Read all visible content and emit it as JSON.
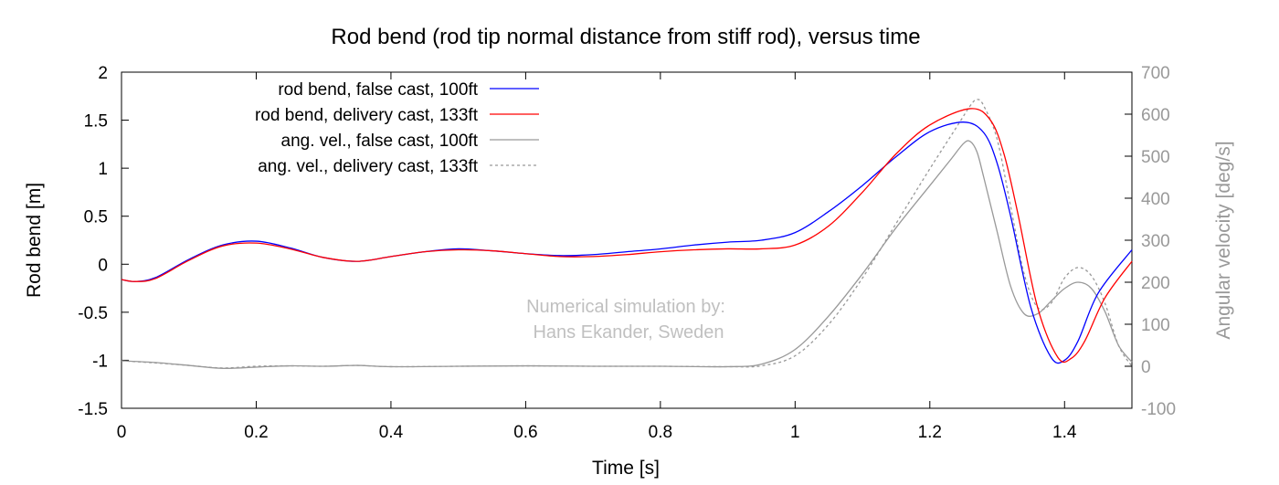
{
  "chart_data": {
    "type": "line",
    "title": "Rod bend (rod tip normal distance from stiff rod), versus time",
    "xlabel": "Time [s]",
    "ylabel": "Rod bend [m]",
    "y2label": "Angular velocity [deg/s]",
    "xlim": [
      0,
      1.5
    ],
    "ylim": [
      -1.5,
      2
    ],
    "y2lim": [
      -100,
      700
    ],
    "x_ticks": [
      0,
      0.2,
      0.4,
      0.6,
      0.8,
      1,
      1.2,
      1.4
    ],
    "x_tick_labels": [
      "0",
      "0.2",
      "0.4",
      "0.6",
      "0.8",
      "1",
      "1.2",
      "1.4"
    ],
    "y_ticks": [
      -1.5,
      -1,
      -0.5,
      0,
      0.5,
      1,
      1.5,
      2
    ],
    "y_tick_labels": [
      "-1.5",
      "-1",
      "-0.5",
      "0",
      "0.5",
      "1",
      "1.5",
      "2"
    ],
    "y2_ticks": [
      -100,
      0,
      100,
      200,
      300,
      400,
      500,
      600,
      700
    ],
    "y2_tick_labels": [
      "-100",
      "0",
      "100",
      "200",
      "300",
      "400",
      "500",
      "600",
      "700"
    ],
    "grid": false,
    "legend_position": "top-left",
    "annotation": [
      "Numerical simulation by:",
      "Hans Ekander, Sweden"
    ],
    "series": [
      {
        "name": "rod bend, false cast, 100ft",
        "axis": "left",
        "color": "#0000ff",
        "style": "solid",
        "x": [
          0,
          0.02,
          0.05,
          0.1,
          0.15,
          0.2,
          0.25,
          0.3,
          0.35,
          0.4,
          0.45,
          0.5,
          0.55,
          0.6,
          0.65,
          0.7,
          0.75,
          0.8,
          0.85,
          0.9,
          0.95,
          1.0,
          1.05,
          1.1,
          1.15,
          1.2,
          1.25,
          1.28,
          1.3,
          1.32,
          1.35,
          1.38,
          1.4,
          1.42,
          1.45,
          1.5
        ],
        "y": [
          -0.16,
          -0.18,
          -0.14,
          0.05,
          0.2,
          0.24,
          0.17,
          0.07,
          0.03,
          0.08,
          0.13,
          0.16,
          0.14,
          0.11,
          0.09,
          0.1,
          0.13,
          0.16,
          0.2,
          0.23,
          0.25,
          0.33,
          0.55,
          0.82,
          1.12,
          1.38,
          1.48,
          1.37,
          1.05,
          0.5,
          -0.45,
          -0.97,
          -1.0,
          -0.8,
          -0.3,
          0.15
        ]
      },
      {
        "name": "rod bend, delivery cast, 133ft",
        "axis": "left",
        "color": "#ff0000",
        "style": "solid",
        "x": [
          0,
          0.02,
          0.05,
          0.1,
          0.15,
          0.2,
          0.25,
          0.3,
          0.35,
          0.4,
          0.45,
          0.5,
          0.55,
          0.6,
          0.65,
          0.7,
          0.75,
          0.8,
          0.85,
          0.9,
          0.95,
          1.0,
          1.05,
          1.1,
          1.15,
          1.2,
          1.26,
          1.29,
          1.31,
          1.33,
          1.36,
          1.39,
          1.41,
          1.43,
          1.46,
          1.5
        ],
        "y": [
          -0.16,
          -0.18,
          -0.15,
          0.04,
          0.19,
          0.22,
          0.16,
          0.07,
          0.03,
          0.08,
          0.13,
          0.15,
          0.14,
          0.11,
          0.08,
          0.08,
          0.1,
          0.13,
          0.15,
          0.16,
          0.16,
          0.2,
          0.4,
          0.75,
          1.15,
          1.45,
          1.62,
          1.5,
          1.15,
          0.55,
          -0.45,
          -0.97,
          -0.98,
          -0.8,
          -0.35,
          0.03
        ]
      },
      {
        "name": "ang. vel., false cast, 100ft",
        "axis": "right",
        "color": "#999999",
        "style": "solid",
        "x": [
          0,
          0.05,
          0.1,
          0.15,
          0.2,
          0.25,
          0.3,
          0.35,
          0.4,
          0.5,
          0.6,
          0.7,
          0.8,
          0.9,
          0.95,
          1.0,
          1.05,
          1.1,
          1.15,
          1.2,
          1.23,
          1.25,
          1.26,
          1.27,
          1.28,
          1.3,
          1.32,
          1.34,
          1.36,
          1.38,
          1.4,
          1.42,
          1.44,
          1.46,
          1.48,
          1.5
        ],
        "y": [
          13,
          9,
          2,
          -5,
          -2,
          1,
          0,
          2,
          -1,
          0,
          1,
          0,
          0,
          -1,
          5,
          40,
          120,
          220,
          330,
          430,
          490,
          530,
          535,
          510,
          450,
          320,
          190,
          125,
          125,
          155,
          185,
          200,
          185,
          130,
          50,
          10
        ]
      },
      {
        "name": "ang. vel., delivery cast, 133ft",
        "axis": "right",
        "color": "#999999",
        "style": "dashed",
        "x": [
          0,
          0.05,
          0.1,
          0.15,
          0.2,
          0.25,
          0.3,
          0.35,
          0.4,
          0.5,
          0.6,
          0.7,
          0.8,
          0.9,
          0.95,
          1.0,
          1.05,
          1.1,
          1.15,
          1.2,
          1.24,
          1.26,
          1.27,
          1.28,
          1.3,
          1.32,
          1.34,
          1.36,
          1.38,
          1.4,
          1.42,
          1.44,
          1.46,
          1.48,
          1.5
        ],
        "y": [
          13,
          8,
          2,
          -4,
          0,
          1,
          0,
          2,
          -1,
          0,
          1,
          0,
          0,
          -1,
          1,
          25,
          100,
          210,
          340,
          470,
          570,
          620,
          635,
          620,
          540,
          380,
          220,
          140,
          150,
          210,
          235,
          215,
          150,
          50,
          0
        ]
      }
    ]
  }
}
